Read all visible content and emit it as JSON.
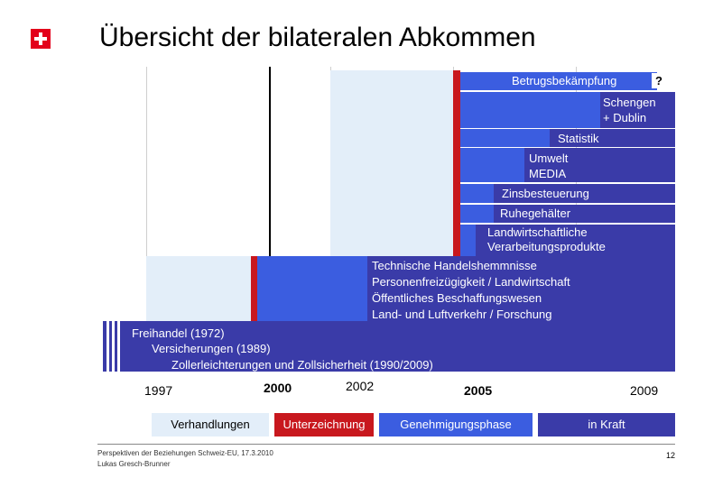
{
  "title": "Übersicht der bilateralen Abkommen",
  "logo_name": "swiss-cross-logo",
  "agreements": {
    "betrug": "Betrugsbekämpfung",
    "betrug_q": "?",
    "schengen1": "Schengen",
    "schengen2": "+ Dublin",
    "statistik": "Statistik",
    "umwelt": "Umwelt",
    "media": "MEDIA",
    "zins": "Zinsbesteuerung",
    "ruhe": "Ruhegehälter",
    "landw1": "Landwirtschaftliche",
    "landw2": "Verarbeitungsprodukte",
    "bil1_1": "Technische Handelshemmnisse",
    "bil1_2": "Personenfreizügigkeit / Landwirtschaft",
    "bil1_3": "Öffentliches Beschaffungswesen",
    "bil1_4": "Land- und Luftverkehr  /  Forschung",
    "base1": "Freihandel (1972)",
    "base2": "Versicherungen (1989)",
    "base3": "Zollerleichterungen und Zollsicherheit (1990/2009)"
  },
  "years": [
    "1997",
    "2000",
    "2002",
    "2005",
    "2009"
  ],
  "legend": {
    "verhandlungen": "Verhandlungen",
    "unterzeichnung": "Unterzeichnung",
    "genehmigung": "Genehmigungsphase",
    "inkraft": "in Kraft"
  },
  "colors": {
    "negotiation": "#e3eef9",
    "signing": "#c8181e",
    "approval": "#3b5de0",
    "in_force": "#3a3ba8"
  },
  "footer": {
    "line1": "Perspektiven der Beziehungen Schweiz-EU, 17.3.2010",
    "line2": "Lukas Gresch-Brunner",
    "page": "12"
  }
}
